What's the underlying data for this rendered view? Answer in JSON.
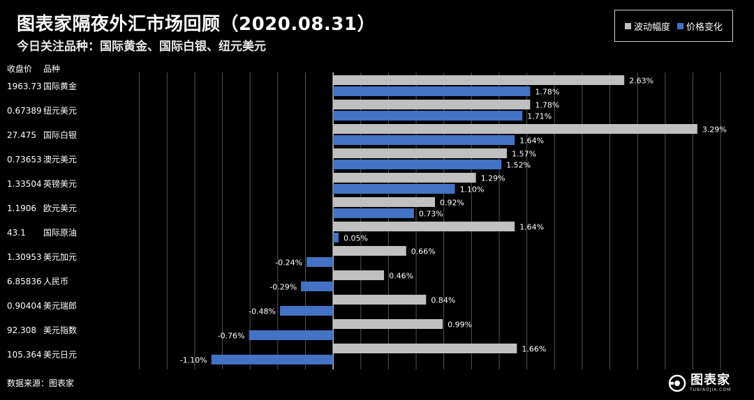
{
  "title": "图表家隔夜外汇市场回顾（2020.08.31）",
  "subtitle": "今日关注品种：国际黄金、国际白银、纽元美元",
  "legend": [
    {
      "label": "波动幅度",
      "color": "#c0c0c0"
    },
    {
      "label": "价格变化",
      "color": "#4472c4"
    }
  ],
  "table_headers": {
    "price": "收盘价",
    "name": "品种"
  },
  "source": "数据来源：图表家",
  "logo": {
    "text": "图表家",
    "url": "TUBIAOJIA.COM"
  },
  "colors": {
    "volatility": "#c0c0c0",
    "change": "#4472c4",
    "grid": "#555555",
    "axis": "#ffffff"
  },
  "chart_data": {
    "type": "bar",
    "orientation": "horizontal",
    "unit": "%",
    "xlim": [
      -2.0,
      3.6
    ],
    "grid": true,
    "legend_position": "top-right",
    "categories": [
      "国际黄金",
      "纽元美元",
      "国际白银",
      "澳元美元",
      "英镑美元",
      "欧元美元",
      "国际原油",
      "美元加元",
      "人民币",
      "美元瑞郎",
      "美元指数",
      "美元日元"
    ],
    "closing_prices": [
      "1963.73",
      "0.67389",
      "27.475",
      "0.73653",
      "1.33504",
      "1.1906",
      "43.1",
      "1.30953",
      "6.85836",
      "0.90404",
      "92.308",
      "105.364"
    ],
    "series": [
      {
        "name": "波动幅度",
        "values": [
          2.63,
          1.78,
          3.29,
          1.57,
          1.29,
          0.92,
          1.64,
          0.66,
          0.46,
          0.84,
          0.99,
          1.66
        ],
        "labels": [
          "2.63%",
          "1.78%",
          "3.29%",
          "1.57%",
          "1.29%",
          "0.92%",
          "1.64%",
          "0.66%",
          "0.46%",
          "0.84%",
          "0.99%",
          "1.66%"
        ]
      },
      {
        "name": "价格变化",
        "values": [
          1.78,
          1.71,
          1.64,
          1.52,
          1.1,
          0.73,
          0.05,
          -0.24,
          -0.29,
          -0.48,
          -0.76,
          -1.1
        ],
        "labels": [
          "1.78%",
          "1.71%",
          "1.64%",
          "1.52%",
          "1.10%",
          "0.73%",
          "0.05%",
          "-0.24%",
          "-0.29%",
          "-0.48%",
          "-0.76%",
          "-1.10%"
        ]
      }
    ]
  }
}
